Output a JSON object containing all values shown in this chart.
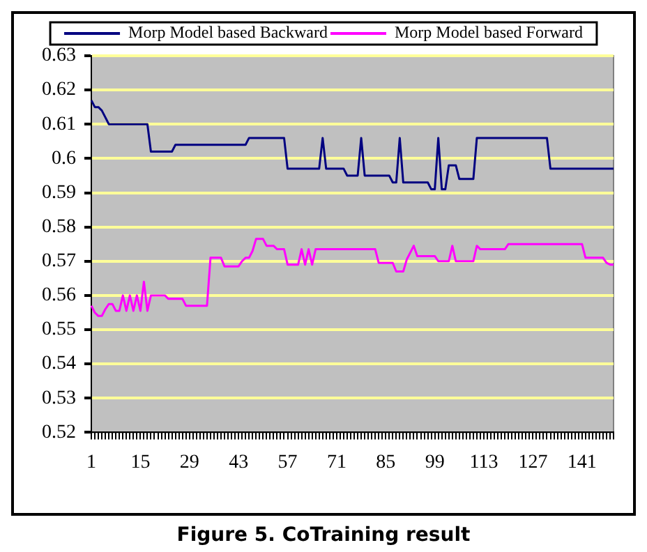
{
  "chart_data": {
    "type": "line",
    "title": "Figure 5. CoTraining result",
    "categories": [
      "1",
      null,
      null,
      null,
      null,
      null,
      null,
      null,
      null,
      null,
      null,
      null,
      null,
      null,
      "15",
      null,
      null,
      null,
      null,
      null,
      null,
      null,
      null,
      null,
      null,
      null,
      null,
      null,
      "29",
      null,
      null,
      null,
      null,
      null,
      null,
      null,
      null,
      null,
      null,
      null,
      null,
      null,
      "43",
      null,
      null,
      null,
      null,
      null,
      null,
      null,
      null,
      null,
      null,
      null,
      null,
      null,
      "57",
      null,
      null,
      null,
      null,
      null,
      null,
      null,
      null,
      null,
      null,
      null,
      null,
      null,
      "71",
      null,
      null,
      null,
      null,
      null,
      null,
      null,
      null,
      null,
      null,
      null,
      null,
      null,
      "85",
      null,
      null,
      null,
      null,
      null,
      null,
      null,
      null,
      null,
      null,
      null,
      null,
      null,
      "99",
      null,
      null,
      null,
      null,
      null,
      null,
      null,
      null,
      null,
      null,
      null,
      null,
      null,
      "113",
      null,
      null,
      null,
      null,
      null,
      null,
      null,
      null,
      null,
      null,
      null,
      null,
      null,
      "127",
      null,
      null,
      null,
      null,
      null,
      null,
      null,
      null,
      null,
      null,
      null,
      null,
      null,
      "141",
      null,
      null,
      null,
      null,
      null,
      null,
      null,
      null,
      null
    ],
    "series": [
      {
        "name": "Morp Model based Backward",
        "color": "#000080",
        "values": [
          0.617,
          0.615,
          0.615,
          0.614,
          0.612,
          0.61,
          0.61,
          0.61,
          0.61,
          0.61,
          0.61,
          0.61,
          0.61,
          0.61,
          0.61,
          0.61,
          0.61,
          0.602,
          0.602,
          0.602,
          0.602,
          0.602,
          0.602,
          0.602,
          0.604,
          0.604,
          0.604,
          0.604,
          0.604,
          0.604,
          0.604,
          0.604,
          0.604,
          0.604,
          0.604,
          0.604,
          0.604,
          0.604,
          0.604,
          0.604,
          0.604,
          0.604,
          0.604,
          0.604,
          0.604,
          0.606,
          0.606,
          0.606,
          0.606,
          0.606,
          0.606,
          0.606,
          0.606,
          0.606,
          0.606,
          0.606,
          0.597,
          0.597,
          0.597,
          0.597,
          0.597,
          0.597,
          0.597,
          0.597,
          0.597,
          0.597,
          0.606,
          0.597,
          0.597,
          0.597,
          0.597,
          0.597,
          0.597,
          0.595,
          0.595,
          0.595,
          0.595,
          0.606,
          0.595,
          0.595,
          0.595,
          0.595,
          0.595,
          0.595,
          0.595,
          0.595,
          0.593,
          0.593,
          0.606,
          0.593,
          0.593,
          0.593,
          0.593,
          0.593,
          0.593,
          0.593,
          0.593,
          0.591,
          0.591,
          0.606,
          0.591,
          0.591,
          0.598,
          0.598,
          0.598,
          0.594,
          0.594,
          0.594,
          0.594,
          0.594,
          0.606,
          0.606,
          0.606,
          0.606,
          0.606,
          0.606,
          0.606,
          0.606,
          0.606,
          0.606,
          0.606,
          0.606,
          0.606,
          0.606,
          0.606,
          0.606,
          0.606,
          0.606,
          0.606,
          0.606,
          0.606,
          0.597,
          0.597,
          0.597,
          0.597,
          0.597,
          0.597,
          0.597,
          0.597,
          0.597,
          0.597,
          0.597,
          0.597,
          0.597,
          0.597,
          0.597,
          0.597,
          0.597,
          0.597,
          0.597
        ]
      },
      {
        "name": "Morp Model based Forward",
        "color": "#ff00ff",
        "values": [
          0.557,
          0.555,
          0.554,
          0.554,
          0.556,
          0.5575,
          0.5575,
          0.5555,
          0.5555,
          0.56,
          0.5555,
          0.56,
          0.5555,
          0.56,
          0.5555,
          0.564,
          0.5555,
          0.56,
          0.56,
          0.56,
          0.56,
          0.56,
          0.559,
          0.559,
          0.559,
          0.559,
          0.559,
          0.557,
          0.557,
          0.557,
          0.557,
          0.557,
          0.557,
          0.557,
          0.571,
          0.571,
          0.571,
          0.571,
          0.5685,
          0.5685,
          0.5685,
          0.5685,
          0.5685,
          0.57,
          0.571,
          0.571,
          0.573,
          0.5765,
          0.5765,
          0.5765,
          0.5745,
          0.5745,
          0.5745,
          0.5735,
          0.5735,
          0.5735,
          0.569,
          0.569,
          0.569,
          0.569,
          0.5735,
          0.569,
          0.5735,
          0.569,
          0.5735,
          0.5735,
          0.5735,
          0.5735,
          0.5735,
          0.5735,
          0.5735,
          0.5735,
          0.5735,
          0.5735,
          0.5735,
          0.5735,
          0.5735,
          0.5735,
          0.5735,
          0.5735,
          0.5735,
          0.5735,
          0.5695,
          0.5695,
          0.5695,
          0.5695,
          0.5695,
          0.567,
          0.567,
          0.567,
          0.5705,
          0.5725,
          0.5745,
          0.5715,
          0.5715,
          0.5715,
          0.5715,
          0.5715,
          0.5715,
          0.57,
          0.57,
          0.57,
          0.57,
          0.5745,
          0.57,
          0.57,
          0.57,
          0.57,
          0.57,
          0.57,
          0.5745,
          0.5735,
          0.5735,
          0.5735,
          0.5735,
          0.5735,
          0.5735,
          0.5735,
          0.5735,
          0.575,
          0.575,
          0.575,
          0.575,
          0.575,
          0.575,
          0.575,
          0.575,
          0.575,
          0.575,
          0.575,
          0.575,
          0.575,
          0.575,
          0.575,
          0.575,
          0.575,
          0.575,
          0.575,
          0.575,
          0.575,
          0.575,
          0.571,
          0.571,
          0.571,
          0.571,
          0.571,
          0.571,
          0.5695,
          0.569,
          0.569
        ]
      }
    ],
    "ylim": [
      0.52,
      0.63
    ],
    "yticks": [
      0.52,
      0.53,
      0.54,
      0.55,
      0.56,
      0.57,
      0.58,
      0.59,
      0.6,
      0.61,
      0.62,
      0.63
    ],
    "grid": "y",
    "legend": "top",
    "marker": "none",
    "line_style": "solid"
  }
}
